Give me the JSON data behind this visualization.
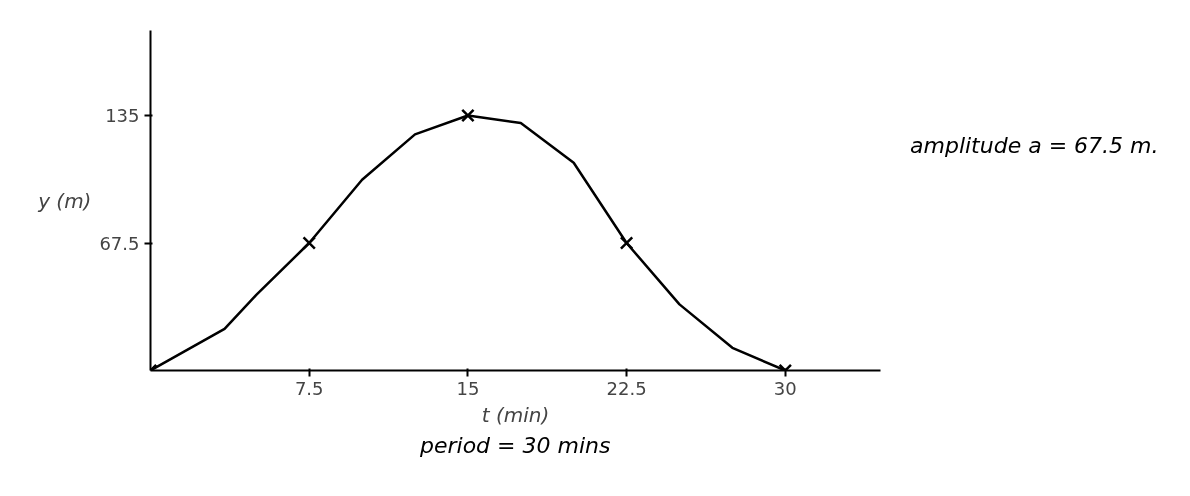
{
  "chart_data": {
    "type": "line",
    "xlabel": "t (min)",
    "ylabel": "y (m)",
    "x": [
      0,
      3.5,
      5,
      7.5,
      10,
      12.5,
      15,
      17.5,
      20,
      22.5,
      25,
      27.5,
      30
    ],
    "series": [
      {
        "color": "#000000",
        "values": [
          0,
          22,
          40,
          67.5,
          101,
          125,
          135,
          131,
          110,
          67.5,
          35,
          12,
          0
        ]
      },
      {
        "type": "scatter",
        "marker": "cross",
        "color": "#000000",
        "x": [
          0,
          7.5,
          15,
          22.5,
          30
        ],
        "values": [
          0,
          67.5,
          135,
          67.5,
          0
        ]
      }
    ],
    "xlim": [
      0,
      34.5
    ],
    "ylim": [
      0,
      180
    ],
    "xticks": [
      7.5,
      15,
      22.5,
      30
    ],
    "yticks": [
      67.5,
      135
    ],
    "annotations": [
      "amplitude a = 67.5 m.",
      "period = 30 mins"
    ],
    "grid": false
  }
}
